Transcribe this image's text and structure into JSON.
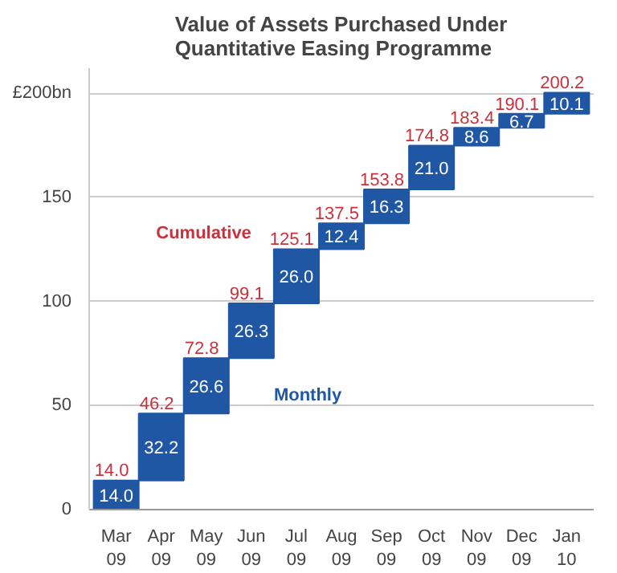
{
  "chart_data": {
    "type": "bar",
    "title": "Value of Assets Purchased Under Quantitative Easing Programme",
    "categories": [
      "Mar\n09",
      "Apr\n09",
      "May\n09",
      "Jun\n09",
      "Jul\n09",
      "Aug\n09",
      "Sep\n09",
      "Oct\n09",
      "Nov\n09",
      "Dec\n09",
      "Jan\n10"
    ],
    "series": [
      {
        "name": "Monthly",
        "color": "#1f57a5",
        "values": [
          14.0,
          32.2,
          26.6,
          26.3,
          26.0,
          12.4,
          16.3,
          21.0,
          8.6,
          6.7,
          10.1
        ],
        "value_labels": [
          "14.0",
          "32.2",
          "26.6",
          "26.3",
          "26.0",
          "12.4",
          "16.3",
          "21.0",
          "8.6",
          "6.7",
          "10.1"
        ],
        "base": [
          0,
          14.0,
          46.2,
          72.8,
          99.1,
          125.1,
          137.5,
          153.8,
          174.8,
          183.4,
          190.1
        ]
      }
    ],
    "annotations": [
      "Cumulative",
      {
        "text": "14.0",
        "x": "Mar\n09",
        "y": 14.0
      },
      {
        "text": "46.2",
        "x": "Apr\n09",
        "y": 46.2
      },
      {
        "text": "72.8",
        "x": "May\n09",
        "y": 72.8
      },
      {
        "text": "99.1",
        "x": "Jun\n09",
        "y": 99.1
      },
      {
        "text": "125.1",
        "x": "Jul\n09",
        "y": 125.1
      },
      {
        "text": "137.5",
        "x": "Aug\n09",
        "y": 137.5
      },
      {
        "text": "153.8",
        "x": "Sep\n09",
        "y": 153.8
      },
      {
        "text": "174.8",
        "x": "Oct\n09",
        "y": 174.8
      },
      {
        "text": "183.4",
        "x": "Nov\n09",
        "y": 183.4
      },
      {
        "text": "190.1",
        "x": "Dec\n09",
        "y": 190.1
      },
      {
        "text": "200.2",
        "x": "Jan\n10",
        "y": 200.2
      }
    ],
    "ylim": [
      0,
      212
    ],
    "yticks": [
      0,
      50,
      100,
      150,
      {
        "value": 200,
        "label": "£200bn"
      }
    ],
    "grid": "y"
  }
}
